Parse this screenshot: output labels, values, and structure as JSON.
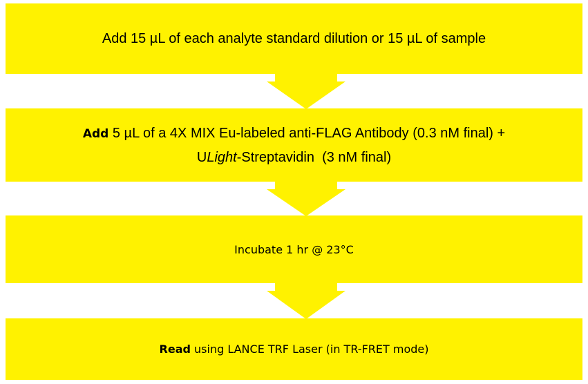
{
  "steps": [
    {
      "lines": [
        [
          "Add 15 µL of each analyte standard dilution or 15 µL of sample"
        ]
      ]
    },
    {
      "lines": [
        [
          "Add",
          " 5 µL of a 4X MIX Eu-labeled anti-FLAG Antibody (0.3 nM final) +"
        ],
        [
          "U",
          "Light",
          "-Streptavidin  (3 nM final)"
        ]
      ]
    },
    {
      "lines": [
        [
          "Incubate 1 hr @ 23°C"
        ]
      ]
    },
    {
      "lines": [
        [
          "Read",
          " using LANCE TRF Laser (in TR-FRET mode)"
        ]
      ]
    }
  ]
}
